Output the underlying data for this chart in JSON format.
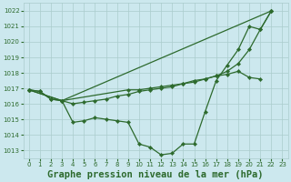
{
  "background_color": "#cce8ee",
  "grid_color": "#aacccc",
  "line_color": "#2d6a2d",
  "title": "Graphe pression niveau de la mer (hPa)",
  "ylim": [
    1012.5,
    1022.5
  ],
  "xlim": [
    -0.5,
    23.5
  ],
  "yticks": [
    1013,
    1014,
    1015,
    1016,
    1017,
    1018,
    1019,
    1020,
    1021,
    1022
  ],
  "xticks": [
    0,
    1,
    2,
    3,
    4,
    5,
    6,
    7,
    8,
    9,
    10,
    11,
    12,
    13,
    14,
    15,
    16,
    17,
    18,
    19,
    20,
    21,
    22,
    23
  ],
  "series1_x": [
    0,
    1,
    2,
    3,
    4,
    5,
    6,
    7,
    8,
    9,
    10,
    11,
    12,
    13,
    14,
    15,
    16,
    17,
    18,
    19,
    20,
    21,
    22
  ],
  "series1_y": [
    1016.9,
    1016.8,
    1016.3,
    1016.2,
    1014.8,
    1014.9,
    1015.1,
    1015.0,
    1014.9,
    1014.8,
    1013.4,
    1013.2,
    1012.7,
    1012.8,
    1013.4,
    1013.4,
    1015.5,
    1017.5,
    1018.5,
    1019.5,
    1021.0,
    1020.8,
    1022.0
  ],
  "series2_x": [
    0,
    1,
    2,
    3,
    4,
    5,
    6,
    7,
    8,
    9,
    10,
    11,
    12,
    13,
    14,
    15,
    16,
    17,
    18,
    19,
    20,
    21
  ],
  "series2_y": [
    1016.9,
    1016.8,
    1016.3,
    1016.2,
    1016.0,
    1016.1,
    1016.2,
    1016.3,
    1016.5,
    1016.6,
    1016.8,
    1016.9,
    1017.0,
    1017.1,
    1017.3,
    1017.4,
    1017.6,
    1017.8,
    1017.9,
    1018.1,
    1017.7,
    1017.6
  ],
  "series3_x": [
    0,
    3,
    22
  ],
  "series3_y": [
    1016.9,
    1016.2,
    1022.0
  ],
  "series4_x": [
    0,
    3,
    9,
    10,
    11,
    12,
    13,
    14,
    15,
    16,
    17,
    18,
    19,
    20,
    21,
    22
  ],
  "series4_y": [
    1016.9,
    1016.2,
    1016.9,
    1016.9,
    1017.0,
    1017.1,
    1017.2,
    1017.3,
    1017.5,
    1017.6,
    1017.8,
    1018.1,
    1018.6,
    1019.5,
    1020.8,
    1022.0
  ]
}
